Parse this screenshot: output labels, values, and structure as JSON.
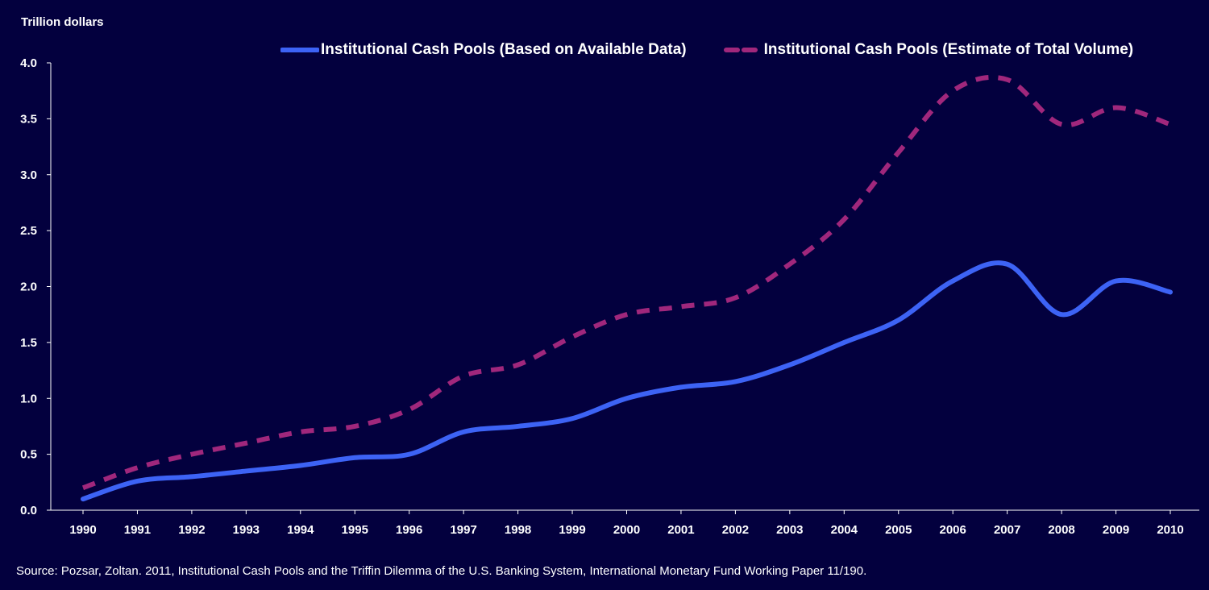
{
  "chart_data": {
    "type": "line",
    "ylabel": "Trillion dollars",
    "ylim": [
      0,
      4
    ],
    "yticks": [
      "0.0",
      "0.5",
      "1.0",
      "1.5",
      "2.0",
      "2.5",
      "3.0",
      "3.5",
      "4.0"
    ],
    "x": [
      "1990",
      "1991",
      "1992",
      "1993",
      "1994",
      "1995",
      "1996",
      "1997",
      "1998",
      "1999",
      "2000",
      "2001",
      "2002",
      "2003",
      "2004",
      "2005",
      "2006",
      "2007",
      "2008",
      "2009",
      "2010"
    ],
    "legend_position": "top",
    "grid": false,
    "series": [
      {
        "name": "Institutional Cash Pools (Based on Available Data)",
        "color": "#3d63f5",
        "style": "solid",
        "values": [
          0.1,
          0.26,
          0.3,
          0.35,
          0.4,
          0.47,
          0.5,
          0.7,
          0.75,
          0.82,
          1.0,
          1.1,
          1.15,
          1.3,
          1.5,
          1.7,
          2.05,
          2.2,
          1.75,
          2.05,
          1.95
        ]
      },
      {
        "name": "Institutional Cash Pools (Estimate of Total Volume)",
        "color": "#a0277c",
        "style": "dashed",
        "values": [
          0.2,
          0.38,
          0.5,
          0.6,
          0.7,
          0.75,
          0.9,
          1.2,
          1.3,
          1.55,
          1.75,
          1.82,
          1.9,
          2.2,
          2.6,
          3.2,
          3.75,
          3.85,
          3.45,
          3.6,
          3.45
        ]
      }
    ]
  },
  "source_note": "Source: Pozsar, Zoltan. 2011, Institutional Cash Pools and the Triffin Dilemma of the U.S. Banking System, International Monetary Fund Working Paper 11/190."
}
